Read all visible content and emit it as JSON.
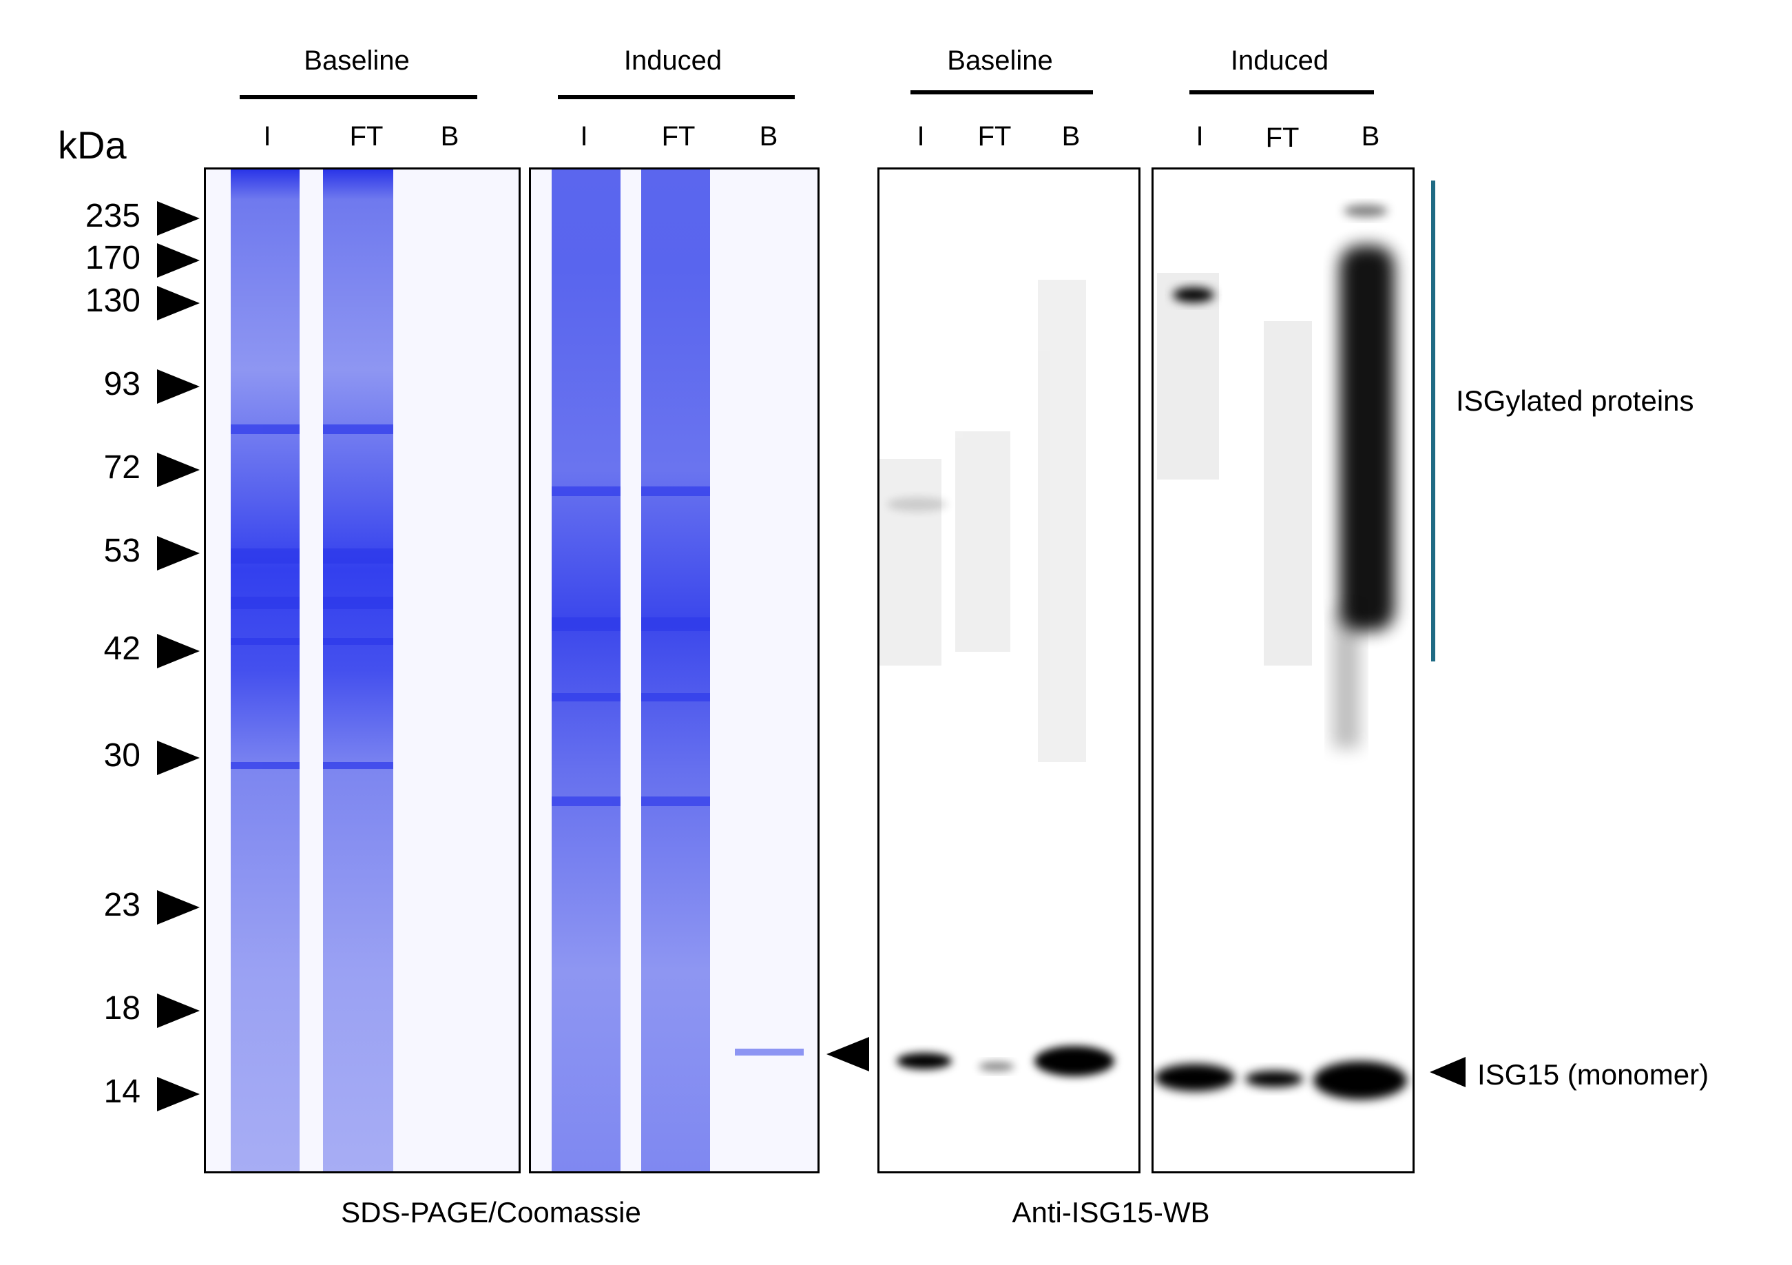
{
  "units_label": "kDa",
  "gel": {
    "group_labels": [
      "Baseline",
      "Induced"
    ],
    "lane_labels": [
      "I",
      "FT",
      "B"
    ],
    "caption": "SDS-PAGE/Coomassie",
    "colors": {
      "stain": "#3d4cf0",
      "background": "#f7f7ff"
    }
  },
  "blot": {
    "group_labels": [
      "Baseline",
      "Induced"
    ],
    "lane_labels": [
      "I",
      "FT",
      "B"
    ],
    "caption": "Anti-ISG15-WB",
    "colors": {
      "band": "#000000",
      "bracket": "#1f6b84"
    }
  },
  "markers": [
    "235",
    "170",
    "130",
    "93",
    "72",
    "53",
    "42",
    "30",
    "23",
    "18",
    "14"
  ],
  "annotations": {
    "isgylated": "ISGylated proteins",
    "monomer": "ISG15 (monomer)"
  }
}
